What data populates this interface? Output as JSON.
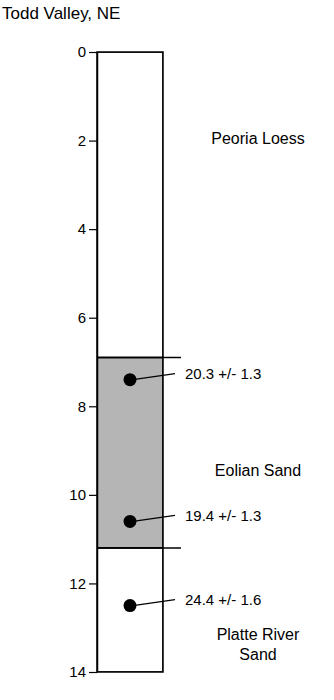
{
  "chart_data": {
    "type": "stratigraphic_column",
    "title": "Todd Valley, NE",
    "ylim": [
      0,
      14
    ],
    "yticks": [
      0,
      2,
      4,
      6,
      8,
      10,
      12,
      14
    ],
    "layers": [
      {
        "label": [
          "Peoria Loess"
        ],
        "top": 0,
        "bottom": 6.9,
        "color": "#ffffff"
      },
      {
        "label": [
          "Eolian Sand"
        ],
        "top": 6.9,
        "bottom": 11.2,
        "color": "#b5b5b5"
      },
      {
        "label": [
          "Platte River",
          "Sand"
        ],
        "top": 11.2,
        "bottom": 14,
        "color": "#ffffff"
      }
    ],
    "samples": [
      {
        "depth": 7.4,
        "label": "20.3 +/- 1.3"
      },
      {
        "depth": 10.6,
        "label": "19.4 +/- 1.3"
      },
      {
        "depth": 12.5,
        "label": "24.4 +/- 1.6"
      }
    ]
  }
}
